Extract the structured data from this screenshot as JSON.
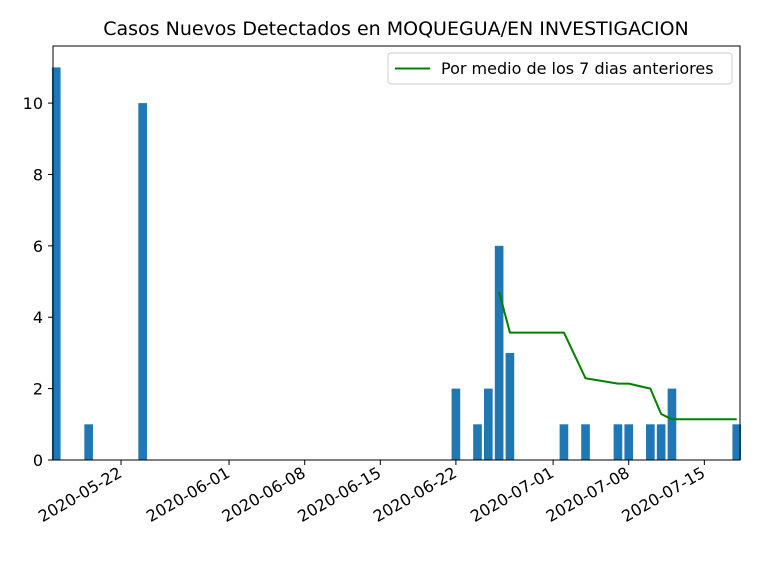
{
  "chart_data": {
    "type": "bar",
    "title": "Casos Nuevos Detectados en MOQUEGUA/EN INVESTIGACION",
    "xlabel": "",
    "ylabel": "",
    "ylim": [
      0,
      11.6
    ],
    "y_ticks": [
      0,
      2,
      4,
      6,
      8,
      10
    ],
    "x_range": [
      "2020-05-16",
      "2020-07-18"
    ],
    "x_ticks": [
      "2020-05-22",
      "2020-06-01",
      "2020-06-08",
      "2020-06-15",
      "2020-06-22",
      "2020-07-01",
      "2020-07-08",
      "2020-07-15"
    ],
    "bar_color": "#1f77b4",
    "bars": [
      {
        "date": "2020-05-16",
        "value": 11
      },
      {
        "date": "2020-05-19",
        "value": 1
      },
      {
        "date": "2020-05-24",
        "value": 10
      },
      {
        "date": "2020-06-22",
        "value": 2
      },
      {
        "date": "2020-06-24",
        "value": 1
      },
      {
        "date": "2020-06-25",
        "value": 2
      },
      {
        "date": "2020-06-26",
        "value": 6
      },
      {
        "date": "2020-06-27",
        "value": 3
      },
      {
        "date": "2020-07-02",
        "value": 1
      },
      {
        "date": "2020-07-04",
        "value": 1
      },
      {
        "date": "2020-07-07",
        "value": 1
      },
      {
        "date": "2020-07-08",
        "value": 1
      },
      {
        "date": "2020-07-10",
        "value": 1
      },
      {
        "date": "2020-07-11",
        "value": 1
      },
      {
        "date": "2020-07-12",
        "value": 2
      },
      {
        "date": "2020-07-18",
        "value": 1
      }
    ],
    "series": [
      {
        "name": "Por medio de los 7 dias anteriores",
        "color": "#008000",
        "points": [
          {
            "date": "2020-06-26",
            "value": 4.71
          },
          {
            "date": "2020-06-27",
            "value": 3.57
          },
          {
            "date": "2020-07-02",
            "value": 3.57
          },
          {
            "date": "2020-07-04",
            "value": 2.29
          },
          {
            "date": "2020-07-07",
            "value": 2.14
          },
          {
            "date": "2020-07-08",
            "value": 2.14
          },
          {
            "date": "2020-07-10",
            "value": 2.0
          },
          {
            "date": "2020-07-11",
            "value": 1.29
          },
          {
            "date": "2020-07-12",
            "value": 1.14
          },
          {
            "date": "2020-07-18",
            "value": 1.14
          }
        ]
      }
    ],
    "legend_position": "top-right"
  }
}
